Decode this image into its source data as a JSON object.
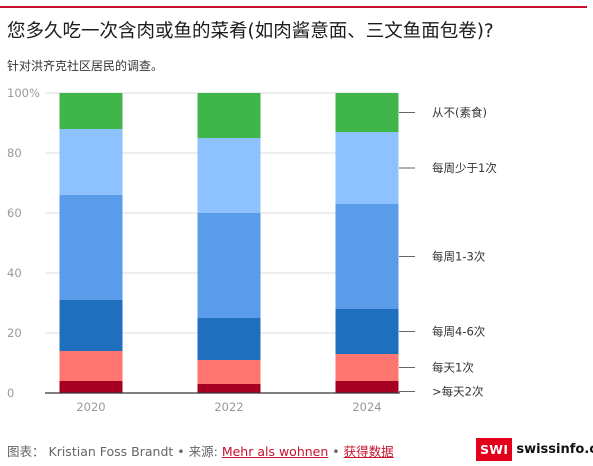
{
  "title": "您多久吃一次含肉或鱼的菜肴(如肉酱意面、三文鱼面包卷)?",
  "subtitle": "针对洪齐克社区居民的调查。",
  "colors": {
    "accent": "#c8102e",
    "grid": "#dddddd",
    "axis_text": "#999999",
    "label_text": "#333333"
  },
  "footer": {
    "graphic_label": "图表：",
    "author": "Kristian Foss Brandt",
    "sep1": "•",
    "source_label": "来源:",
    "source_link": "Mehr als wohnen",
    "sep2": "•",
    "data_link": "获得数据"
  },
  "logo": {
    "box_text": "SWI",
    "text": "swissinfo.ch"
  },
  "chart_data": {
    "type": "bar",
    "stacked": true,
    "categories": [
      "2020",
      "2022",
      "2024"
    ],
    "ylim": [
      0,
      100
    ],
    "yticks": [
      "0",
      "20",
      "40",
      "60",
      "80",
      "100%"
    ],
    "ytick_values": [
      0,
      20,
      40,
      60,
      80,
      100
    ],
    "grid": true,
    "legend_placement": "right, inline labels",
    "series": [
      {
        "name": ">每天2次",
        "color": "#a50021",
        "values": [
          4,
          3,
          4
        ]
      },
      {
        "name": "每天1次",
        "color": "#ff7670",
        "values": [
          10,
          8,
          9
        ]
      },
      {
        "name": "每周4-6次",
        "color": "#1f6fbf",
        "values": [
          17,
          14,
          15
        ]
      },
      {
        "name": "每周1-3次",
        "color": "#5b9cea",
        "values": [
          35,
          35,
          35
        ]
      },
      {
        "name": "每周少于1次",
        "color": "#8ec2ff",
        "values": [
          22,
          25,
          24
        ]
      },
      {
        "name": "从不(素食)",
        "color": "#3fb54a",
        "values": [
          12,
          15,
          13
        ]
      }
    ]
  }
}
